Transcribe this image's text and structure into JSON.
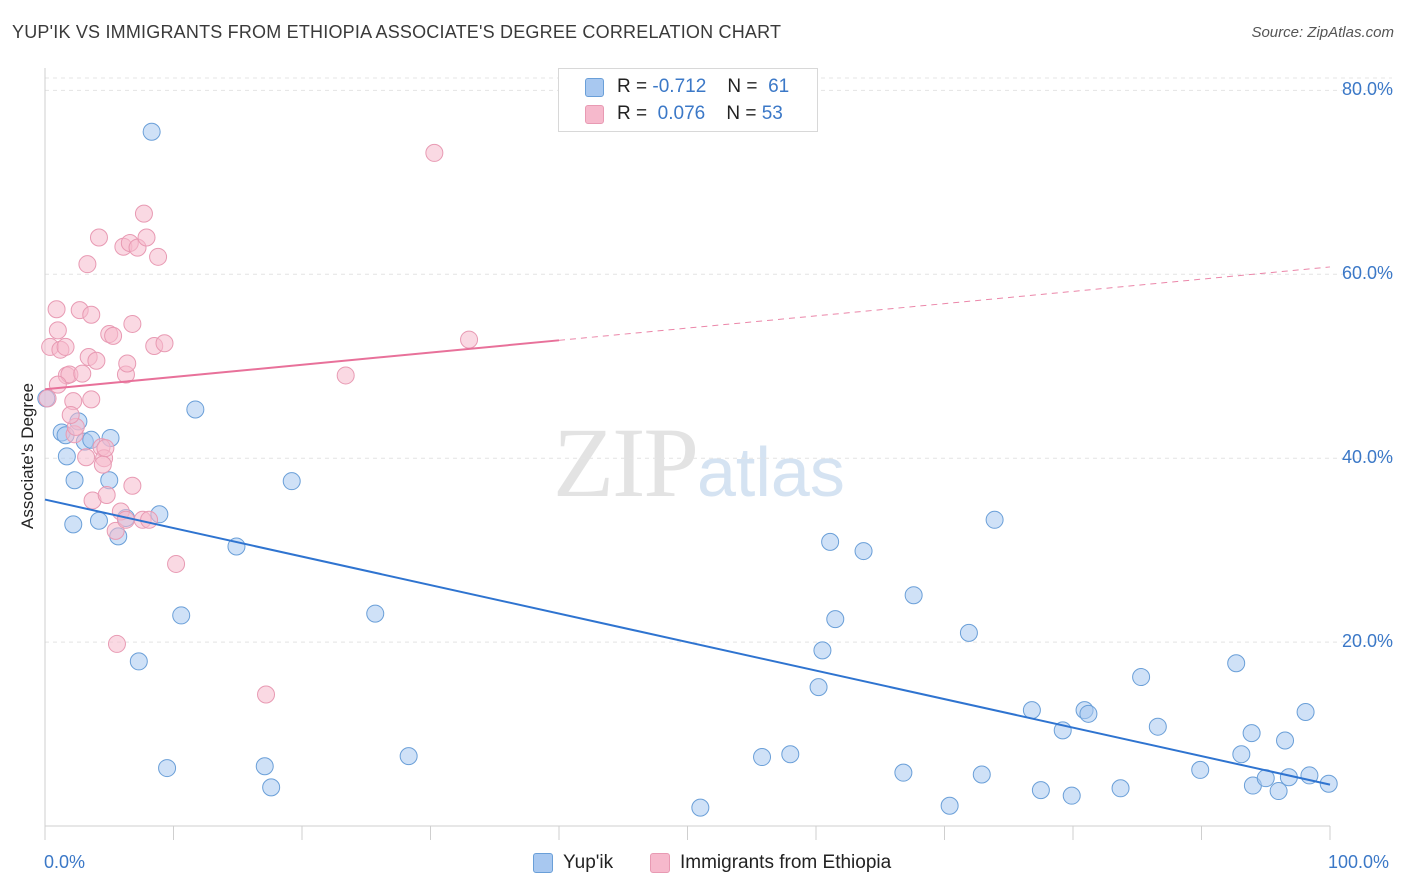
{
  "title": "YUP'IK VS IMMIGRANTS FROM ETHIOPIA ASSOCIATE'S DEGREE CORRELATION CHART",
  "source": "Source: ZipAtlas.com",
  "watermark": {
    "zip": "ZIP",
    "atlas": "atlas"
  },
  "legend": {
    "r_label": "R =",
    "n_label": "N =",
    "rows": [
      {
        "r": "-0.712",
        "n": "61"
      },
      {
        "r": "0.076",
        "n": "53"
      }
    ]
  },
  "chart_data": {
    "type": "scatter",
    "title": "YUP'IK VS IMMIGRANTS FROM ETHIOPIA ASSOCIATE'S DEGREE CORRELATION CHART",
    "xlabel": "",
    "ylabel": "Associate's Degree",
    "xlim": [
      0,
      100
    ],
    "ylim": [
      0,
      82
    ],
    "x_tick_labels": [
      "0.0%",
      "100.0%"
    ],
    "y_ticks": [
      20,
      40,
      60,
      80
    ],
    "y_tick_labels": [
      "20.0%",
      "40.0%",
      "60.0%",
      "80.0%"
    ],
    "grid": true,
    "legend_position": "top-center",
    "series": [
      {
        "name": "Yup'ik",
        "color": "#a8c8f0",
        "edge_color": "#6a9fd8",
        "line_color": "#2f74d0",
        "trend": {
          "x0": 0,
          "y0": 35.5,
          "x1": 100,
          "y1": 4.5,
          "dashed_from": null
        },
        "points": [
          [
            8.3,
            75.5
          ],
          [
            0.1,
            46.5
          ],
          [
            1.3,
            42.8
          ],
          [
            1.6,
            42.5
          ],
          [
            1.7,
            40.2
          ],
          [
            2.3,
            37.6
          ],
          [
            2.6,
            44.0
          ],
          [
            3.1,
            41.8
          ],
          [
            3.6,
            42.0
          ],
          [
            5.1,
            42.2
          ],
          [
            5.0,
            37.6
          ],
          [
            4.2,
            33.2
          ],
          [
            6.3,
            33.5
          ],
          [
            5.7,
            31.5
          ],
          [
            2.2,
            32.8
          ],
          [
            8.9,
            33.9
          ],
          [
            11.7,
            45.3
          ],
          [
            14.9,
            30.4
          ],
          [
            19.2,
            37.5
          ],
          [
            10.6,
            22.9
          ],
          [
            25.7,
            23.1
          ],
          [
            7.3,
            17.9
          ],
          [
            9.5,
            6.3
          ],
          [
            17.1,
            6.5
          ],
          [
            17.6,
            4.2
          ],
          [
            28.3,
            7.6
          ],
          [
            55.8,
            7.5
          ],
          [
            58.0,
            7.8
          ],
          [
            61.1,
            30.9
          ],
          [
            63.7,
            29.9
          ],
          [
            61.5,
            22.5
          ],
          [
            60.5,
            19.1
          ],
          [
            60.2,
            15.1
          ],
          [
            67.6,
            25.1
          ],
          [
            71.9,
            21.0
          ],
          [
            73.9,
            33.3
          ],
          [
            66.8,
            5.8
          ],
          [
            72.9,
            5.6
          ],
          [
            76.8,
            12.6
          ],
          [
            79.2,
            10.4
          ],
          [
            80.9,
            12.6
          ],
          [
            81.2,
            12.2
          ],
          [
            85.3,
            16.2
          ],
          [
            86.6,
            10.8
          ],
          [
            89.9,
            6.1
          ],
          [
            92.7,
            17.7
          ],
          [
            93.1,
            7.8
          ],
          [
            93.9,
            10.1
          ],
          [
            94.0,
            4.4
          ],
          [
            95.0,
            5.2
          ],
          [
            96.0,
            3.8
          ],
          [
            96.5,
            9.3
          ],
          [
            96.8,
            5.3
          ],
          [
            98.1,
            12.4
          ],
          [
            98.4,
            5.5
          ],
          [
            99.9,
            4.6
          ],
          [
            51.0,
            2.0
          ],
          [
            70.4,
            2.2
          ],
          [
            77.5,
            3.9
          ],
          [
            79.9,
            3.3
          ],
          [
            83.7,
            4.1
          ]
        ]
      },
      {
        "name": "Immigrants from Ethiopia",
        "color": "#f6b9cc",
        "edge_color": "#e89ab3",
        "line_color": "#e8719a",
        "trend": {
          "x0": 0,
          "y0": 47.5,
          "x1": 100,
          "y1": 60.8,
          "dashed_from": 40.0
        },
        "points": [
          [
            0.2,
            46.5
          ],
          [
            0.4,
            52.1
          ],
          [
            0.9,
            56.2
          ],
          [
            1.0,
            53.9
          ],
          [
            1.2,
            51.8
          ],
          [
            1.6,
            52.1
          ],
          [
            1.7,
            49.0
          ],
          [
            1.9,
            49.1
          ],
          [
            2.2,
            46.2
          ],
          [
            2.3,
            42.6
          ],
          [
            2.4,
            43.4
          ],
          [
            2.7,
            56.1
          ],
          [
            2.9,
            49.2
          ],
          [
            3.2,
            40.1
          ],
          [
            3.3,
            61.1
          ],
          [
            3.4,
            51.0
          ],
          [
            3.6,
            55.6
          ],
          [
            3.7,
            35.4
          ],
          [
            4.0,
            50.6
          ],
          [
            4.2,
            64.0
          ],
          [
            4.4,
            41.2
          ],
          [
            4.6,
            40.0
          ],
          [
            4.5,
            39.3
          ],
          [
            4.7,
            41.1
          ],
          [
            4.8,
            36.0
          ],
          [
            5.0,
            53.5
          ],
          [
            5.3,
            53.3
          ],
          [
            5.5,
            32.1
          ],
          [
            5.6,
            19.8
          ],
          [
            5.9,
            34.2
          ],
          [
            6.3,
            33.3
          ],
          [
            6.1,
            63.0
          ],
          [
            6.3,
            49.1
          ],
          [
            6.4,
            50.3
          ],
          [
            6.6,
            63.4
          ],
          [
            6.8,
            37.0
          ],
          [
            6.8,
            54.6
          ],
          [
            7.2,
            62.9
          ],
          [
            7.6,
            33.3
          ],
          [
            7.7,
            66.6
          ],
          [
            7.9,
            64.0
          ],
          [
            8.1,
            33.3
          ],
          [
            8.5,
            52.2
          ],
          [
            8.8,
            61.9
          ],
          [
            9.3,
            52.5
          ],
          [
            10.2,
            28.5
          ],
          [
            17.2,
            14.3
          ],
          [
            23.4,
            49.0
          ],
          [
            30.3,
            73.2
          ],
          [
            33.0,
            52.9
          ],
          [
            1.0,
            48.0
          ],
          [
            2.0,
            44.7
          ],
          [
            3.6,
            46.4
          ]
        ]
      }
    ]
  }
}
